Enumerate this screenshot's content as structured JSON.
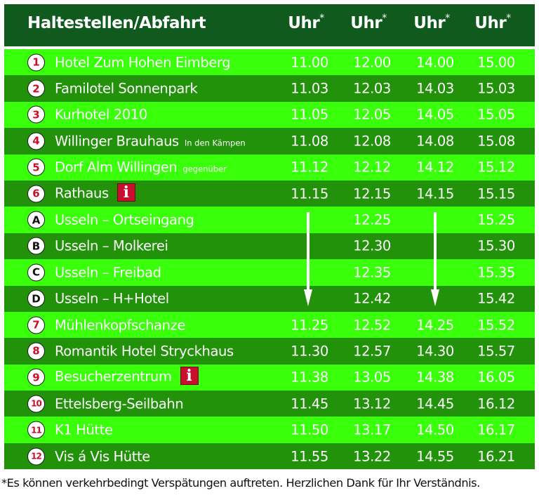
{
  "header": {
    "title": "Haltestellen/Abfahrt",
    "columns": [
      {
        "label": "Uhr",
        "mark": "*"
      },
      {
        "label": "Uhr",
        "mark": "*"
      },
      {
        "label": "Uhr",
        "mark": "*"
      },
      {
        "label": "Uhr",
        "mark": "*"
      }
    ]
  },
  "colors": {
    "header_bg": "#0f5a1c",
    "row_light": "#39ff0a",
    "row_dark": "#22920a",
    "badge_number": "#c8102e",
    "info_icon": "#c8102e"
  },
  "stops": [
    {
      "badge": "1",
      "name": "Hotel Zum Hohen Eimberg",
      "note": "",
      "info": false,
      "times": [
        "11.00",
        "12.00",
        "14.00",
        "15.00"
      ]
    },
    {
      "badge": "2",
      "name": "Familotel Sonnenpark",
      "note": "",
      "info": false,
      "times": [
        "11.03",
        "12.03",
        "14.03",
        "15.03"
      ]
    },
    {
      "badge": "3",
      "name": "Kurhotel 2010",
      "note": "",
      "info": false,
      "times": [
        "11.05",
        "12.05",
        "14.05",
        "15.05"
      ]
    },
    {
      "badge": "4",
      "name": "Willinger Brauhaus",
      "note": "In den Kämpen",
      "info": false,
      "times": [
        "11.08",
        "12.08",
        "14.08",
        "15.08"
      ]
    },
    {
      "badge": "5",
      "name": "Dorf Alm Willingen",
      "note": "gegenüber",
      "info": false,
      "times": [
        "11.12",
        "12.12",
        "14.12",
        "15.12"
      ]
    },
    {
      "badge": "6",
      "name": "Rathaus",
      "note": "",
      "info": true,
      "times": [
        "11.15",
        "12.15",
        "14.15",
        "15.15"
      ]
    },
    {
      "badge": "A",
      "name": "Usseln – Ortseingang",
      "note": "",
      "info": false,
      "times": [
        "",
        "12.25",
        "",
        "15.25"
      ]
    },
    {
      "badge": "B",
      "name": "Usseln – Molkerei",
      "note": "",
      "info": false,
      "times": [
        "",
        "12.30",
        "",
        "15.30"
      ]
    },
    {
      "badge": "C",
      "name": "Usseln – Freibad",
      "note": "",
      "info": false,
      "times": [
        "",
        "12.35",
        "",
        "15.35"
      ]
    },
    {
      "badge": "D",
      "name": "Usseln – H+Hotel",
      "note": "",
      "info": false,
      "times": [
        "",
        "12.42",
        "",
        "15.42"
      ]
    },
    {
      "badge": "7",
      "name": "Mühlenkopfschanze",
      "note": "",
      "info": false,
      "times": [
        "11.25",
        "12.52",
        "14.25",
        "15.52"
      ]
    },
    {
      "badge": "8",
      "name": "Romantik Hotel Stryckhaus",
      "note": "",
      "info": false,
      "times": [
        "11.30",
        "12.57",
        "14.30",
        "15.57"
      ]
    },
    {
      "badge": "9",
      "name": "Besucherzentrum",
      "note": "",
      "info": true,
      "times": [
        "11.38",
        "13.05",
        "14.38",
        "16.05"
      ]
    },
    {
      "badge": "10",
      "name": "Ettelsberg-Seilbahn",
      "note": "",
      "info": false,
      "times": [
        "11.45",
        "13.12",
        "14.45",
        "16.12"
      ]
    },
    {
      "badge": "11",
      "name": "K1 Hütte",
      "note": "",
      "info": false,
      "times": [
        "11.50",
        "13.17",
        "14.50",
        "16.17"
      ]
    },
    {
      "badge": "12",
      "name": "Vis á Vis Hütte",
      "note": "",
      "info": false,
      "times": [
        "11.55",
        "13.22",
        "14.55",
        "16.21"
      ]
    }
  ],
  "skip_arrows": [
    {
      "column": 0,
      "from_stop": "A",
      "to_stop": "D",
      "icon": "arrow-down-icon"
    },
    {
      "column": 2,
      "from_stop": "A",
      "to_stop": "D",
      "icon": "arrow-down-icon"
    }
  ],
  "info_icon_glyph": "i",
  "footer": "*Es können verkehrbedingt Verspätungen auftreten. Herzlichen Dank für Ihr Verständnis."
}
